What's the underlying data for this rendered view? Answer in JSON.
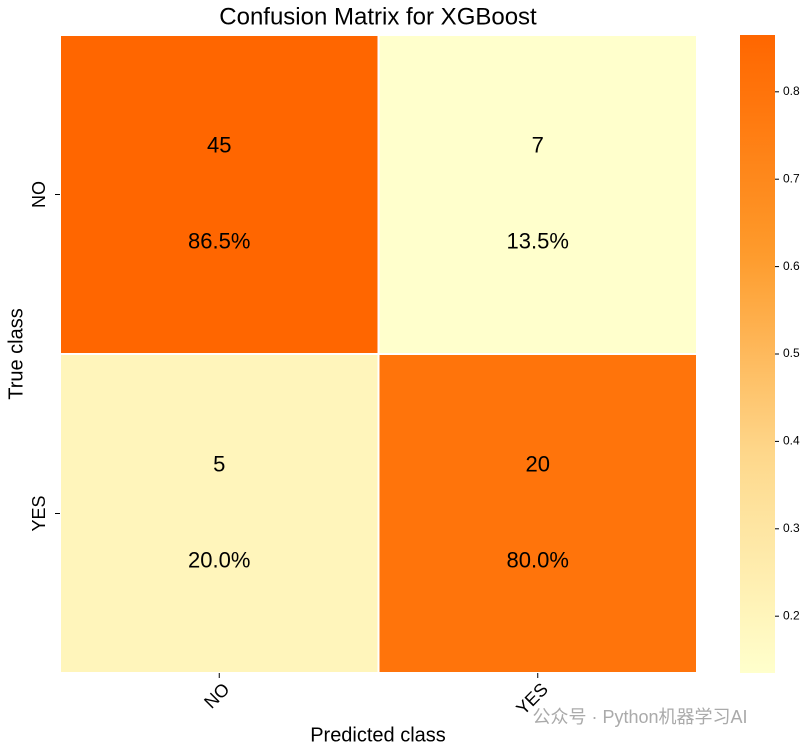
{
  "chart_data": {
    "type": "heatmap",
    "title": "Confusion Matrix for XGBoost",
    "xlabel": "Predicted class",
    "ylabel": "True class",
    "x_categories": [
      "NO",
      "YES"
    ],
    "y_categories": [
      "NO",
      "YES"
    ],
    "values": [
      [
        45,
        7
      ],
      [
        5,
        20
      ]
    ],
    "proportions": [
      [
        0.865,
        0.135
      ],
      [
        0.2,
        0.8
      ]
    ],
    "proportion_labels": [
      [
        "86.5%",
        "13.5%"
      ],
      [
        "20.0%",
        "80.0%"
      ]
    ],
    "colors": [
      "#ffffcc",
      "#fed98e",
      "#fe9929",
      "#ff6600"
    ],
    "clim": [
      0.135,
      0.865
    ],
    "cticks": [
      0.2,
      0.3,
      0.4,
      0.5,
      0.6,
      0.7,
      0.8
    ],
    "watermark": "公众号 · Python机器学习AI"
  }
}
